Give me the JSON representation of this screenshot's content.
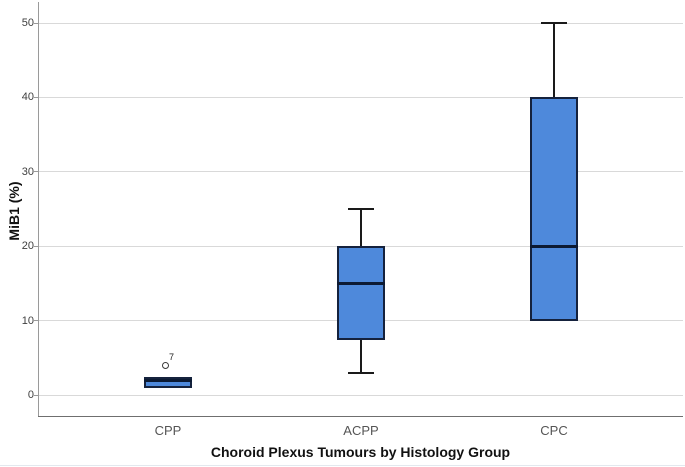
{
  "chart_data": {
    "type": "box",
    "title": "",
    "xlabel": "Choroid Plexus Tumours by Histology Group",
    "ylabel": "MiB1 (%)",
    "ylim": [
      -3,
      53
    ],
    "y_ticks": [
      0,
      10,
      20,
      30,
      40,
      50
    ],
    "grid": "horizontal",
    "legend": "none",
    "categories": [
      "CPP",
      "ACPP",
      "CPC"
    ],
    "series": [
      {
        "category": "CPP",
        "whisker_low": null,
        "q1": 1,
        "median": 2,
        "q3": 2.5,
        "whisker_high": null,
        "outliers": [
          {
            "value": 4,
            "case_label": "7"
          }
        ]
      },
      {
        "category": "ACPP",
        "whisker_low": 3,
        "q1": 7.5,
        "median": 15,
        "q3": 20,
        "whisker_high": 25,
        "outliers": []
      },
      {
        "category": "CPC",
        "whisker_low": null,
        "q1": 10,
        "median": 20,
        "q3": 40,
        "whisker_high": 50,
        "outliers": []
      }
    ],
    "colors": {
      "box_fill": "#4e89db",
      "box_border": "#15223d",
      "median": "#0c1a33",
      "whisker": "#1a1a1a",
      "gridline": "#d9d9d9",
      "y_axis_line": "#9a9a9a",
      "x_axis_line": "#6f6f6f",
      "tick_label": "#3f3f3f",
      "category_label": "#555555",
      "outlier_stroke": "#3a3a3a"
    }
  }
}
